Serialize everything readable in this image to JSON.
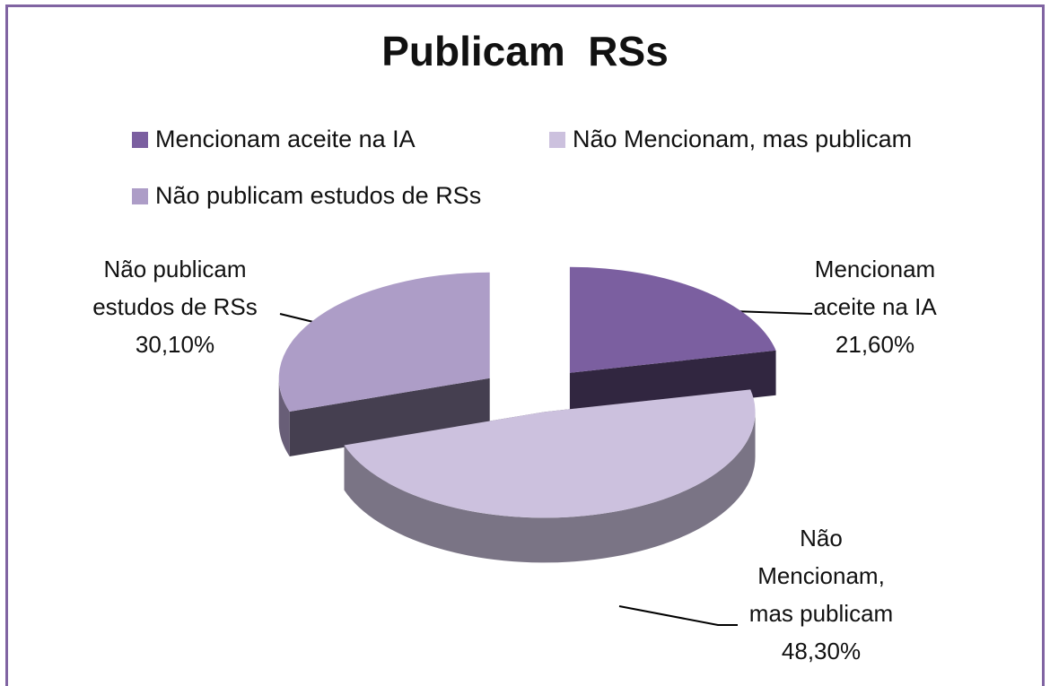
{
  "chart_data": {
    "type": "pie",
    "title": "Publicam  RSs",
    "categories": [
      "Mencionam aceite na IA",
      "Não Mencionam, mas publicam",
      "Não publicam estudos de RSs"
    ],
    "values": [
      21.6,
      48.3,
      30.1
    ],
    "value_labels": [
      "21,60%",
      "48,30%",
      "30,10%"
    ],
    "colors": [
      "#7b5fa0",
      "#ccc1de",
      "#ad9dc7"
    ],
    "legend": "top"
  }
}
